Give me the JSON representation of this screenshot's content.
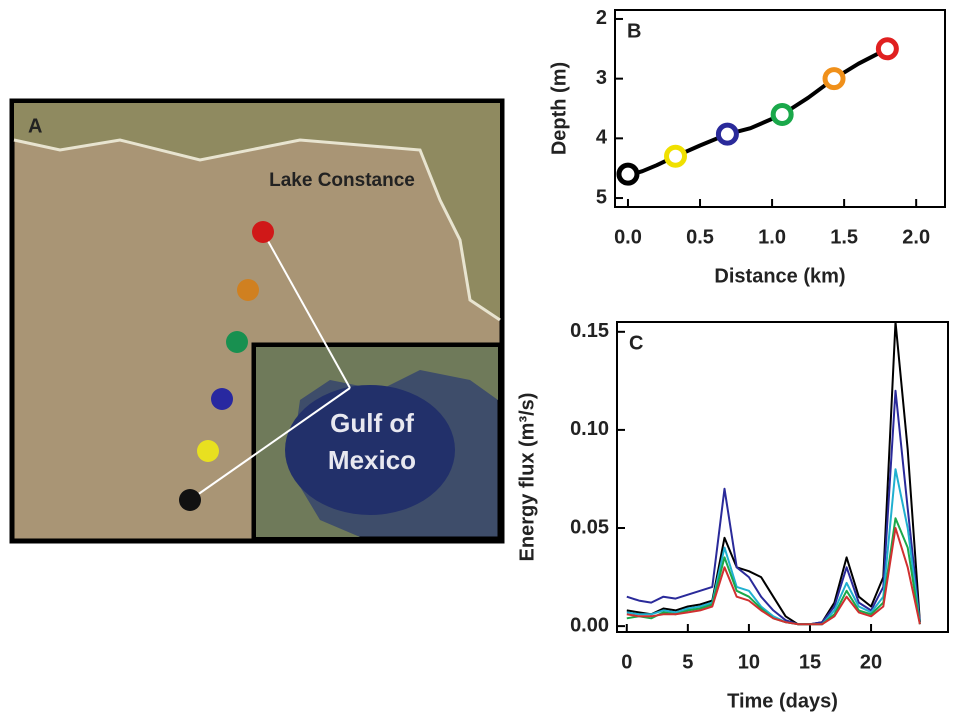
{
  "map": {
    "panel": "A",
    "lake": "Lake Constance",
    "gulf": [
      "Gulf of",
      "Mexico"
    ]
  },
  "chart_data": [
    {
      "type": "line",
      "panel": "B",
      "xlabel": "Distance (km)",
      "ylabel": "Depth (m)",
      "x": [
        -0.03,
        0,
        0.1,
        0.2,
        0.33,
        0.5,
        0.69,
        0.85,
        1.07,
        1.25,
        1.43,
        1.6,
        1.8
      ],
      "values": [
        4.72,
        4.62,
        4.55,
        4.45,
        4.3,
        4.12,
        3.93,
        3.83,
        3.6,
        3.32,
        3.0,
        2.75,
        2.5
      ],
      "color": "#000000",
      "markers": {
        "x": [
          0.0,
          0.33,
          0.69,
          1.07,
          1.43,
          1.8
        ],
        "values": [
          4.6,
          4.3,
          3.93,
          3.6,
          3.0,
          2.5
        ],
        "colors": [
          "#000000",
          "#f0e000",
          "#2a2a9a",
          "#1aa84a",
          "#f0901a",
          "#e02020"
        ]
      },
      "xlim": [
        -0.09,
        2.2
      ],
      "xticks": [
        {
          "value": 0,
          "label": "0.0"
        },
        {
          "value": 0.5,
          "label": "0.5"
        },
        {
          "value": 1,
          "label": "1.0"
        },
        {
          "value": 1.5,
          "label": "1.5"
        },
        {
          "value": 2,
          "label": "2.0"
        }
      ],
      "ylim": [
        5.15,
        1.85
      ],
      "yticks": [
        2,
        3,
        4,
        5
      ]
    },
    {
      "type": "line",
      "panel": "C",
      "xlabel": "Time (days)",
      "ylabel": "Energy flux (m³/s)",
      "x": [
        0,
        1,
        2,
        3,
        4,
        5,
        6,
        7,
        8,
        9,
        10,
        11,
        12,
        13,
        14,
        15,
        16,
        17,
        18,
        19,
        20,
        21,
        22,
        23,
        24
      ],
      "series": [
        {
          "color": "#000000",
          "values": [
            0.008,
            0.007,
            0.006,
            0.009,
            0.008,
            0.01,
            0.011,
            0.013,
            0.045,
            0.03,
            0.028,
            0.025,
            0.015,
            0.005,
            0.001,
            0.001,
            0.002,
            0.012,
            0.035,
            0.015,
            0.01,
            0.025,
            0.155,
            0.09,
            0.002
          ]
        },
        {
          "color": "#2a2a9a",
          "values": [
            0.015,
            0.013,
            0.012,
            0.015,
            0.014,
            0.016,
            0.018,
            0.02,
            0.07,
            0.03,
            0.025,
            0.015,
            0.008,
            0.003,
            0.001,
            0.001,
            0.002,
            0.01,
            0.03,
            0.012,
            0.008,
            0.02,
            0.12,
            0.06,
            0.002
          ]
        },
        {
          "color": "#20b0d0",
          "values": [
            0.007,
            0.006,
            0.006,
            0.008,
            0.007,
            0.009,
            0.01,
            0.012,
            0.04,
            0.02,
            0.018,
            0.01,
            0.005,
            0.002,
            0.001,
            0.001,
            0.001,
            0.008,
            0.022,
            0.01,
            0.007,
            0.015,
            0.08,
            0.05,
            0.001
          ]
        },
        {
          "color": "#1aa84a",
          "values": [
            0.004,
            0.005,
            0.004,
            0.007,
            0.006,
            0.008,
            0.009,
            0.011,
            0.035,
            0.018,
            0.015,
            0.009,
            0.004,
            0.002,
            0.001,
            0.001,
            0.001,
            0.006,
            0.018,
            0.008,
            0.006,
            0.012,
            0.055,
            0.04,
            0.001
          ]
        },
        {
          "color": "#d03030",
          "values": [
            0.006,
            0.005,
            0.005,
            0.006,
            0.006,
            0.007,
            0.008,
            0.01,
            0.03,
            0.015,
            0.013,
            0.008,
            0.004,
            0.002,
            0.001,
            0.001,
            0.001,
            0.005,
            0.015,
            0.007,
            0.005,
            0.01,
            0.05,
            0.03,
            0.001
          ]
        }
      ],
      "xlim": [
        -0.8,
        26.3
      ],
      "xticks": [
        0,
        5,
        10,
        15,
        20
      ],
      "ylim": [
        -0.003,
        0.155
      ],
      "yticks": [
        {
          "value": 0,
          "label": "0.00"
        },
        {
          "value": 0.05,
          "label": "0.05"
        },
        {
          "value": 0.1,
          "label": "0.10"
        },
        {
          "value": 0.15,
          "label": "0.15"
        }
      ]
    }
  ]
}
